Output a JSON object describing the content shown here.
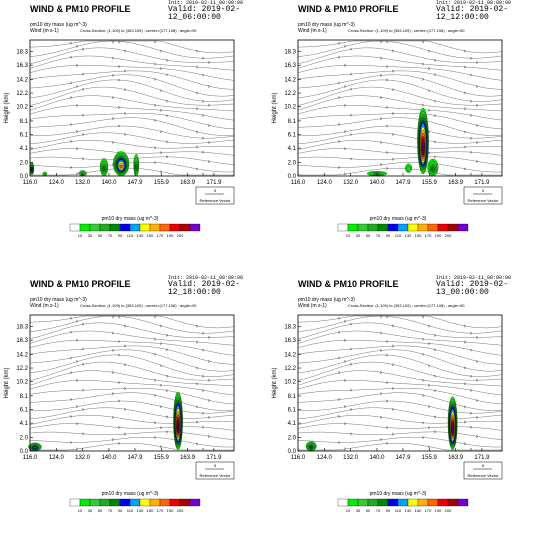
{
  "panels": [
    {
      "title": "WIND & PM10 PROFILE",
      "init": "Init: 2019-02-11_00:00:00",
      "valid": "Valid: 2019-02-12_06:00:00",
      "unit1": "pm10 dry mass   (ug m^-3)",
      "unit2": "Wind    (m s-1)",
      "xsec": "Cross-Section: (1,109) to (353,109) ; center=(177,108) ; angle=90",
      "ylabel": "Height (km)",
      "ref_value": "5",
      "ref_label": "Reference Vector",
      "cb_title": "pm10 dry mass   (ug m^-3)"
    },
    {
      "title": "WIND & PM10 PROFILE",
      "init": "Init: 2019-02-11_00:00:00",
      "valid": "Valid: 2019-02-12_12:00:00",
      "unit1": "pm10 dry mass   (ug m^-3)",
      "unit2": "Wind    (m s-1)",
      "xsec": "Cross-Section: (1,109) to (353,109) ; center=(177,108) ; angle=90",
      "ylabel": "Height (km)",
      "ref_value": "5",
      "ref_label": "Reference Vector",
      "cb_title": "pm10 dry mass   (ug m^-3)"
    },
    {
      "title": "WIND & PM10 PROFILE",
      "init": "Init: 2019-02-11_00:00:00",
      "valid": "Valid: 2019-02-12_18:00:00",
      "unit1": "pm10 dry mass   (ug m^-3)",
      "unit2": "Wind    (m s-1)",
      "xsec": "Cross-Section: (1,109) to (353,109) ; center=(177,108) ; angle=90",
      "ylabel": "Height (km)",
      "ref_value": "5",
      "ref_label": "Reference Vector",
      "cb_title": "pm10 dry mass   (ug m^-3)"
    },
    {
      "title": "WIND & PM10 PROFILE",
      "init": "Init: 2019-02-11_00:00:00",
      "valid": "Valid: 2019-02-13_00:00:00",
      "unit1": "pm10 dry mass   (ug m^-3)",
      "unit2": "Wind    (m s-1)",
      "xsec": "Cross-Section: (1,109) to (353,109) ; center=(177,108) ; angle=90",
      "ylabel": "Height (km)",
      "ref_value": "5",
      "ref_label": "Reference Vector",
      "cb_title": "pm10 dry mass   (ug m^-3)"
    }
  ],
  "chart_data": {
    "type": "heatmap",
    "x_ticks": [
      "116.0",
      "124.0",
      "132.0",
      "140.0",
      "147.9",
      "155.9",
      "163.9",
      "171.9"
    ],
    "y_ticks": [
      "0.0",
      "2.0",
      "4.1",
      "6.1",
      "8.1",
      "10.2",
      "12.2",
      "14.2",
      "16.3",
      "18.3"
    ],
    "xlim": [
      116.0,
      178.0
    ],
    "ylim": [
      0,
      20
    ],
    "colorbar": {
      "levels": [
        "10",
        "30",
        "50",
        "70",
        "90",
        "110",
        "130",
        "150",
        "170",
        "190",
        "200"
      ],
      "colors": [
        "#ffffff",
        "#00ee00",
        "#33cc33",
        "#22aa22",
        "#008800",
        "#0000ee",
        "#00a0ff",
        "#ffff00",
        "#ffb000",
        "#ff6600",
        "#ee0000",
        "#aa0000",
        "#7700cc"
      ]
    },
    "plumes": [
      [
        {
          "lon": 116.6,
          "h0": 0.2,
          "h1": 2.0,
          "w": 0.5,
          "peak": 5
        },
        {
          "lon": 120.5,
          "h0": 0.0,
          "h1": 0.6,
          "w": 0.4,
          "peak": 1
        },
        {
          "lon": 132.0,
          "h0": 0.0,
          "h1": 0.8,
          "w": 1.2,
          "peak": 2
        },
        {
          "lon": 138.5,
          "h0": 0.0,
          "h1": 2.6,
          "w": 1.2,
          "peak": 3
        },
        {
          "lon": 143.7,
          "h0": 0.0,
          "h1": 3.6,
          "w": 2.4,
          "peak": 8
        },
        {
          "lon": 148.3,
          "h0": 0.0,
          "h1": 3.2,
          "w": 0.8,
          "peak": 3
        }
      ],
      [
        {
          "lon": 140.0,
          "h0": 0.0,
          "h1": 0.7,
          "w": 3.0,
          "peak": 2
        },
        {
          "lon": 149.6,
          "h0": 0.5,
          "h1": 1.8,
          "w": 1.0,
          "peak": 1
        },
        {
          "lon": 154.0,
          "h0": 0.3,
          "h1": 10.0,
          "w": 1.7,
          "peak": 12
        },
        {
          "lon": 157.0,
          "h0": 0.0,
          "h1": 2.5,
          "w": 1.6,
          "peak": 3
        }
      ],
      [
        {
          "lon": 117.5,
          "h0": 0.0,
          "h1": 1.2,
          "w": 2.0,
          "peak": 5
        },
        {
          "lon": 161.0,
          "h0": 0.2,
          "h1": 8.7,
          "w": 1.4,
          "peak": 12
        }
      ],
      [
        {
          "lon": 120.0,
          "h0": 0.0,
          "h1": 1.4,
          "w": 1.6,
          "peak": 4
        },
        {
          "lon": 163.0,
          "h0": 0.2,
          "h1": 8.0,
          "w": 1.4,
          "peak": 12
        }
      ]
    ]
  }
}
